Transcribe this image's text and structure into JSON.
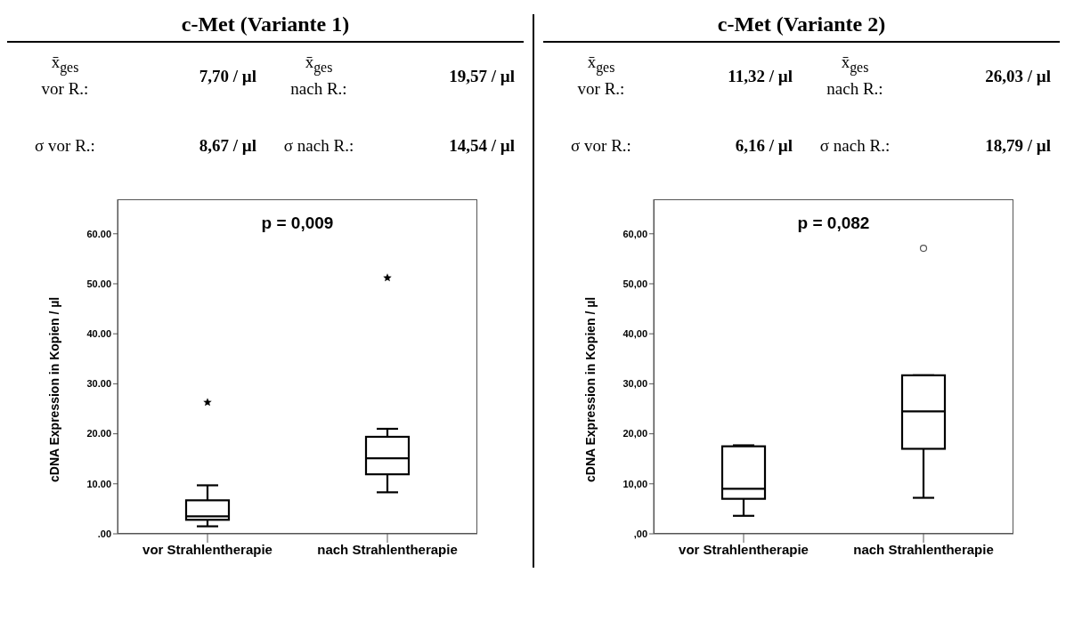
{
  "chart_data": [
    {
      "type": "box",
      "title": "c-Met (Variante 1)",
      "ylabel": "cDNA Expression in Kopien / µl",
      "categories": [
        "vor Strahlentherapie",
        "nach Strahlentherapie"
      ],
      "marker": "star",
      "boxes": [
        {
          "low": 1.5,
          "q1": 2.8,
          "median": 3.5,
          "q3": 6.7,
          "high": 9.7,
          "outliers": [
            26.3
          ]
        },
        {
          "low": 8.3,
          "q1": 11.9,
          "median": 15.1,
          "q3": 19.4,
          "high": 21.0,
          "outliers": [
            51.2
          ]
        }
      ],
      "ylim": [
        0,
        66.9
      ],
      "yticks": [
        {
          "value": 0,
          "label": ".00"
        },
        {
          "value": 10,
          "label": "10.00"
        },
        {
          "value": 20,
          "label": "20.00"
        },
        {
          "value": 30,
          "label": "30.00"
        },
        {
          "value": 40,
          "label": "40.00"
        },
        {
          "value": 50,
          "label": "50.00"
        },
        {
          "value": 60,
          "label": "60.00"
        }
      ],
      "annotations": [
        "x̄$_{ges}$\nvor R.:",
        "7,70 / µl",
        "x̄$_{ges}$\nnach R.:",
        "19,57 / µl",
        "σ vor R.:",
        "8,67 / µl",
        "σ nach R.:",
        "14,54 / µl",
        "p = 0,009"
      ]
    },
    {
      "type": "box",
      "title": "c-Met (Variante 2)",
      "ylabel": "cDNA Expression in Kopien / µl",
      "categories": [
        "vor Strahlentherapie",
        "nach Strahlentherapie"
      ],
      "marker": "circle",
      "boxes": [
        {
          "low": 3.6,
          "q1": 7.0,
          "median": 9.0,
          "q3": 17.5,
          "high": 17.7
        },
        {
          "low": 7.2,
          "q1": 17.0,
          "median": 24.5,
          "q3": 31.7,
          "high": 31.7,
          "outliers": [
            57.1
          ]
        }
      ],
      "ylim": [
        0,
        66.9
      ],
      "yticks": [
        {
          "value": 0,
          "label": ",00"
        },
        {
          "value": 10,
          "label": "10,00"
        },
        {
          "value": 20,
          "label": "20,00"
        },
        {
          "value": 30,
          "label": "30,00"
        },
        {
          "value": 40,
          "label": "40,00"
        },
        {
          "value": 50,
          "label": "50,00"
        },
        {
          "value": 60,
          "label": "60,00"
        }
      ],
      "annotations": [
        "x̄$_{ges}$\nvor R.:",
        "11,32 / µl",
        "x̄$_{ges}$\nnach R.:",
        "26,03 / µl",
        "σ vor R.:",
        "6,16 / µl",
        "σ nach R.:",
        "18,79 / µl",
        "p = 0,082"
      ]
    }
  ]
}
